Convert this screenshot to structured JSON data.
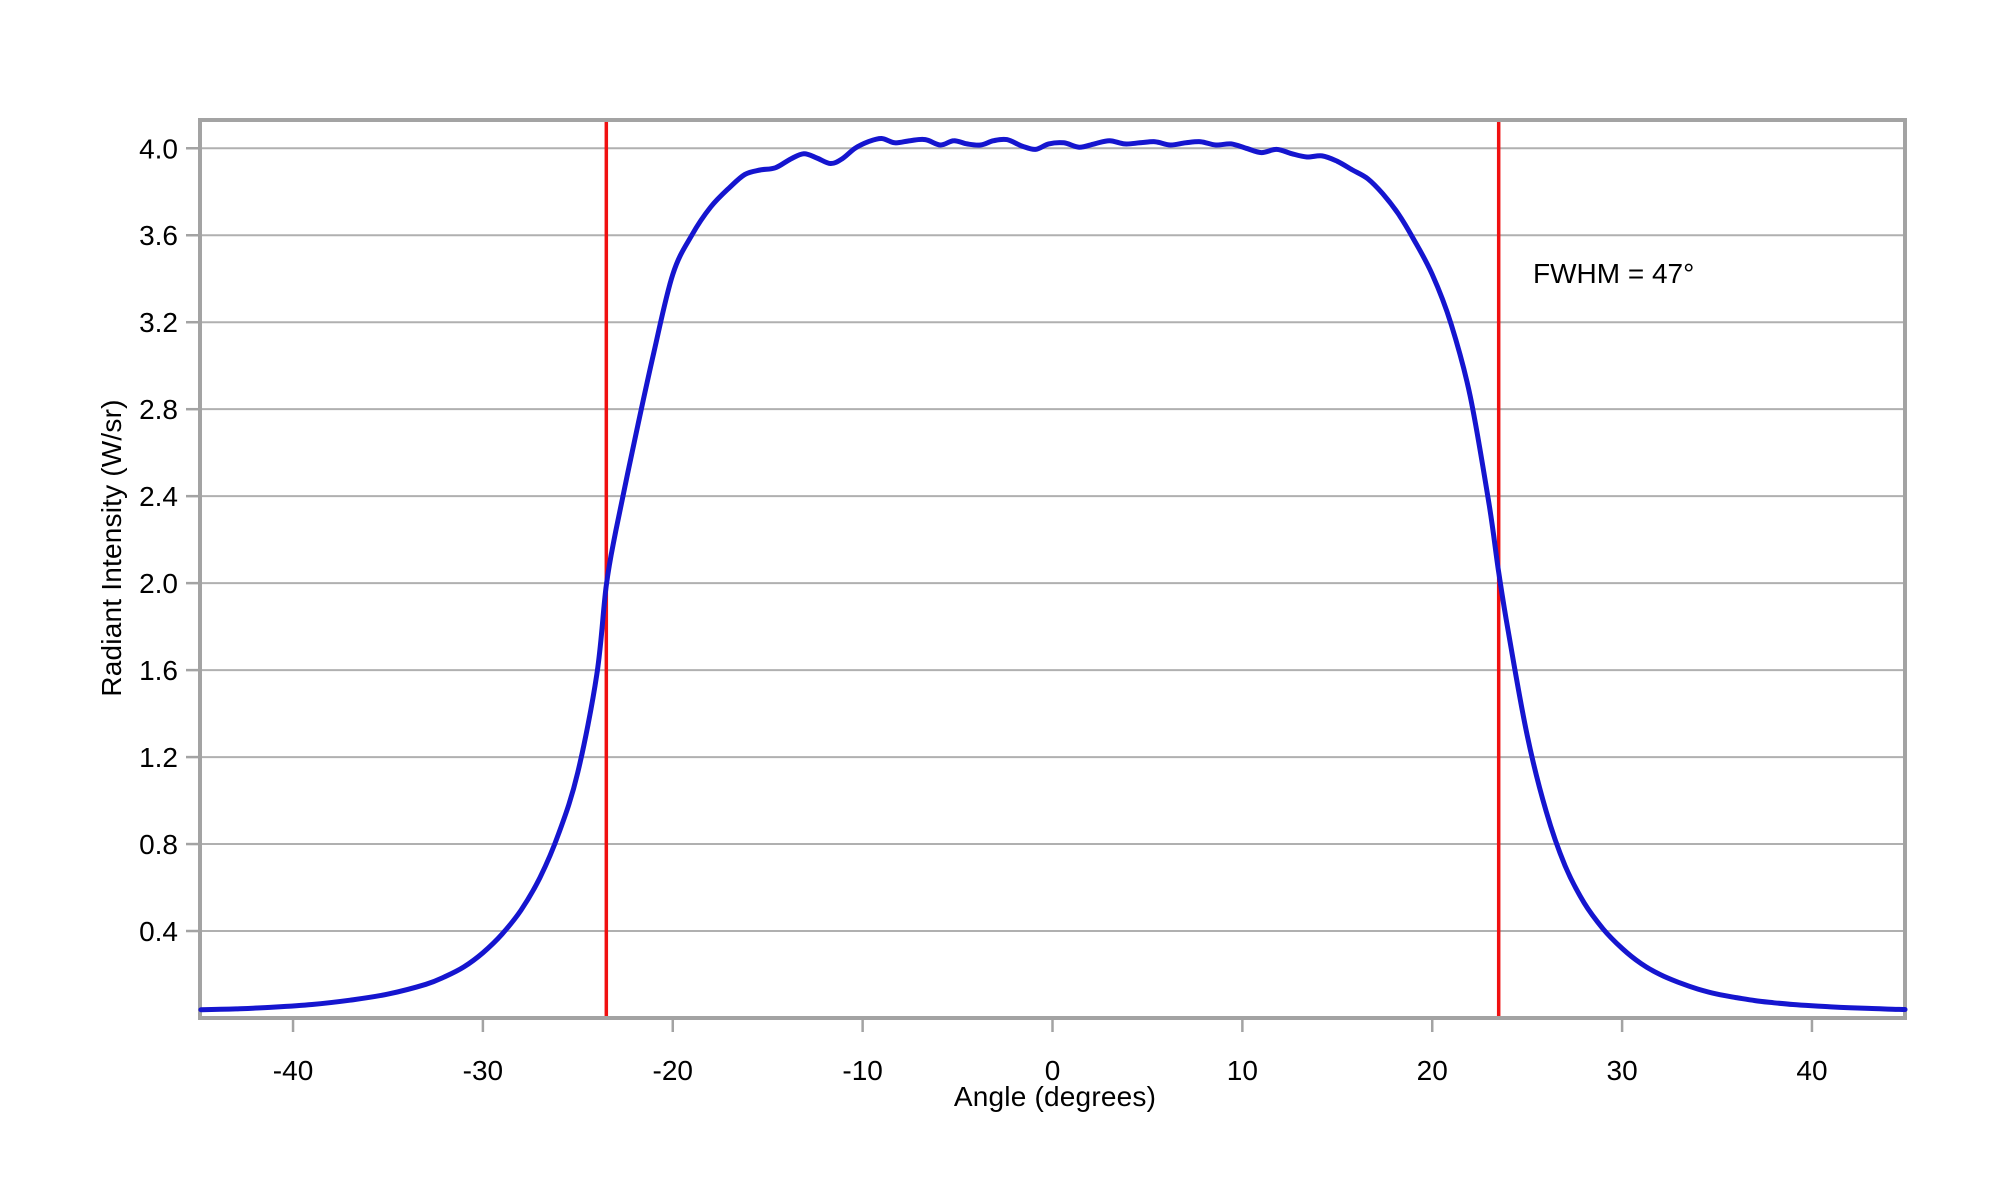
{
  "figure": {
    "background": "#ffffff",
    "frame_color": "#a3a3a3",
    "grid_color": "#b0b0b0",
    "tick_color": "#a3a3a3",
    "text_color": "#000000"
  },
  "chart_data": {
    "type": "line",
    "title": "",
    "xlabel": "Angle (degrees)",
    "ylabel": "Radiant Intensity (W/sr)",
    "xlim": [
      -44.9,
      44.9
    ],
    "ylim": [
      0,
      4.13
    ],
    "grid": "horizontal-only",
    "legend": "none",
    "x_ticks": [
      "-40",
      "-30",
      "-20",
      "-10",
      "0",
      "10",
      "20",
      "30",
      "40"
    ],
    "y_ticks": [
      "0.4",
      "0.8",
      "1.2",
      "1.6",
      "2.0",
      "2.4",
      "2.8",
      "3.2",
      "3.6",
      "4.0"
    ],
    "series": [
      {
        "name": "radiant-intensity-curve",
        "color": "#1515cf",
        "width": 5,
        "points": [
          [
            -44.85,
            0.038
          ],
          [
            -43,
            0.042
          ],
          [
            -41,
            0.05
          ],
          [
            -39,
            0.062
          ],
          [
            -37,
            0.082
          ],
          [
            -35,
            0.11
          ],
          [
            -33,
            0.155
          ],
          [
            -32,
            0.19
          ],
          [
            -31,
            0.235
          ],
          [
            -30,
            0.3
          ],
          [
            -29,
            0.385
          ],
          [
            -28,
            0.495
          ],
          [
            -27,
            0.645
          ],
          [
            -26,
            0.85
          ],
          [
            -25,
            1.13
          ],
          [
            -24,
            1.58
          ],
          [
            -23.5,
            1.99
          ],
          [
            -23,
            2.24
          ],
          [
            -22,
            2.66
          ],
          [
            -21,
            3.06
          ],
          [
            -20,
            3.42
          ],
          [
            -19,
            3.6
          ],
          [
            -18,
            3.73
          ],
          [
            -17,
            3.82
          ],
          [
            -16.2,
            3.88
          ],
          [
            -15.4,
            3.9
          ],
          [
            -14.6,
            3.91
          ],
          [
            -13.8,
            3.95
          ],
          [
            -13.1,
            3.975
          ],
          [
            -12.4,
            3.955
          ],
          [
            -11.7,
            3.93
          ],
          [
            -11.1,
            3.95
          ],
          [
            -10.4,
            4.0
          ],
          [
            -9.7,
            4.03
          ],
          [
            -9.0,
            4.045
          ],
          [
            -8.3,
            4.025
          ],
          [
            -7.5,
            4.035
          ],
          [
            -6.7,
            4.04
          ],
          [
            -5.9,
            4.015
          ],
          [
            -5.2,
            4.035
          ],
          [
            -4.5,
            4.02
          ],
          [
            -3.8,
            4.015
          ],
          [
            -3.1,
            4.035
          ],
          [
            -2.4,
            4.04
          ],
          [
            -1.6,
            4.01
          ],
          [
            -0.9,
            3.995
          ],
          [
            -0.2,
            4.02
          ],
          [
            0.6,
            4.025
          ],
          [
            1.4,
            4.005
          ],
          [
            2.2,
            4.02
          ],
          [
            3.0,
            4.035
          ],
          [
            3.8,
            4.02
          ],
          [
            4.6,
            4.025
          ],
          [
            5.4,
            4.03
          ],
          [
            6.2,
            4.015
          ],
          [
            7.0,
            4.025
          ],
          [
            7.8,
            4.03
          ],
          [
            8.6,
            4.015
          ],
          [
            9.4,
            4.02
          ],
          [
            10.2,
            4.0
          ],
          [
            11.0,
            3.98
          ],
          [
            11.8,
            3.995
          ],
          [
            12.6,
            3.975
          ],
          [
            13.4,
            3.96
          ],
          [
            14.2,
            3.965
          ],
          [
            15.0,
            3.94
          ],
          [
            15.8,
            3.9
          ],
          [
            16.6,
            3.86
          ],
          [
            17.4,
            3.79
          ],
          [
            18.2,
            3.7
          ],
          [
            19.0,
            3.585
          ],
          [
            20.0,
            3.42
          ],
          [
            21.0,
            3.19
          ],
          [
            22.0,
            2.86
          ],
          [
            23.0,
            2.36
          ],
          [
            23.5,
            2.05
          ],
          [
            24.0,
            1.78
          ],
          [
            25.0,
            1.3
          ],
          [
            26.0,
            0.95
          ],
          [
            27.0,
            0.7
          ],
          [
            28.0,
            0.53
          ],
          [
            29.0,
            0.41
          ],
          [
            30.0,
            0.32
          ],
          [
            31.0,
            0.25
          ],
          [
            32.0,
            0.2
          ],
          [
            33.0,
            0.163
          ],
          [
            34.0,
            0.133
          ],
          [
            35.0,
            0.11
          ],
          [
            36.0,
            0.094
          ],
          [
            37.0,
            0.08
          ],
          [
            38.0,
            0.07
          ],
          [
            39.0,
            0.062
          ],
          [
            40.0,
            0.056
          ],
          [
            41.0,
            0.051
          ],
          [
            42.0,
            0.047
          ],
          [
            43.0,
            0.044
          ],
          [
            44.0,
            0.041
          ],
          [
            44.9,
            0.039
          ]
        ]
      }
    ],
    "fwhm_markers": {
      "name": "fwhm-vertical-lines",
      "color": "#f01010",
      "width": 3.5,
      "x_values": [
        -23.5,
        23.5
      ],
      "half_max": 2.0
    },
    "annotations": [
      {
        "text": "FWHM = 47°",
        "x": 25.3,
        "y": 3.42
      }
    ]
  }
}
